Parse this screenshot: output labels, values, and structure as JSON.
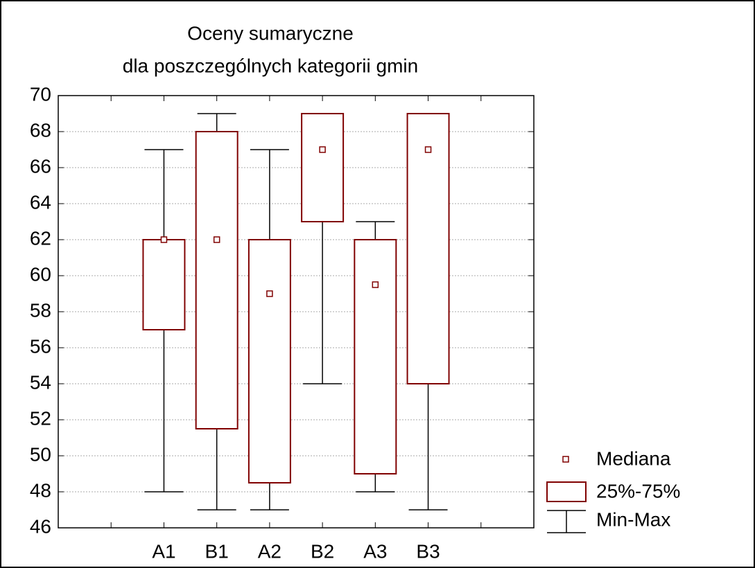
{
  "chart_data": {
    "type": "box",
    "title": [
      "Oceny sumaryczne",
      "dla poszczególnych kategorii gmin"
    ],
    "categories": [
      "A1",
      "B1",
      "A2",
      "B2",
      "A3",
      "B3"
    ],
    "min": [
      48,
      47,
      47,
      54,
      48,
      47
    ],
    "q1": [
      57,
      51.5,
      48.5,
      63,
      49,
      54
    ],
    "median": [
      62,
      62,
      59,
      67,
      59.5,
      67
    ],
    "q3": [
      62,
      68,
      62,
      69,
      62,
      69
    ],
    "max": [
      67,
      69,
      67,
      69,
      63,
      69
    ],
    "color": "#800000",
    "whisker_color": "#000000",
    "ylim": [
      46,
      70
    ],
    "yticks": [
      46,
      48,
      50,
      52,
      54,
      56,
      58,
      60,
      62,
      64,
      66,
      68,
      70
    ],
    "grid": true,
    "legend": {
      "median": "Mediana",
      "box": "25%-75%",
      "whisker": "Min-Max"
    }
  }
}
